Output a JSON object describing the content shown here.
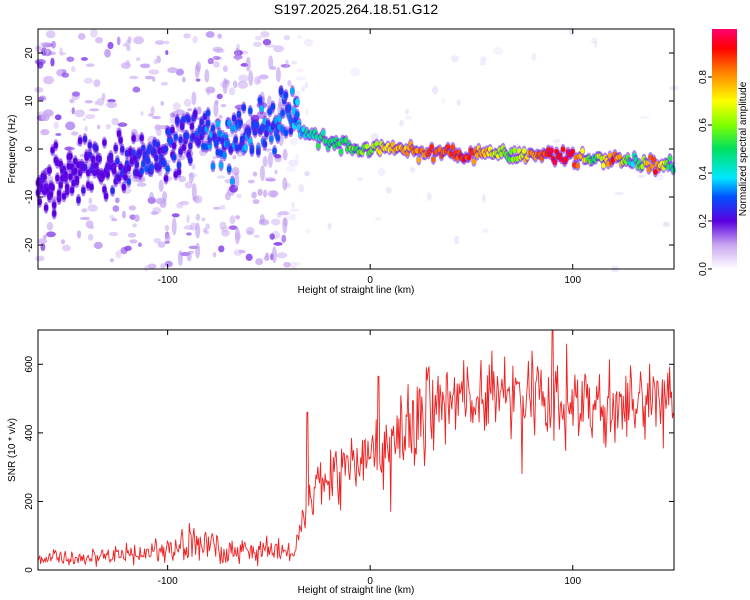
{
  "title": "S197.2025.264.18.51.G12",
  "chart_data": [
    {
      "type": "heatmap",
      "name": "spectrogram",
      "xlabel": "Height of straight line (km)",
      "ylabel": "Frequency (Hz)",
      "xlim": [
        -164,
        150
      ],
      "ylim": [
        -25,
        25
      ],
      "xticks": [
        -100,
        0,
        100
      ],
      "yticks": [
        -20,
        -10,
        0,
        10,
        20
      ],
      "colorbar": {
        "label": "Normalized spectral amplitude",
        "ticks": [
          0.0,
          0.2,
          0.4,
          0.6,
          0.8
        ],
        "range": [
          0,
          1
        ],
        "colormap": "rainbow"
      },
      "ridge": [
        {
          "x": -164,
          "y": -8,
          "a": 0.15
        },
        {
          "x": -150,
          "y": -6,
          "a": 0.15
        },
        {
          "x": -140,
          "y": -4,
          "a": 0.18
        },
        {
          "x": -125,
          "y": -3,
          "a": 0.2
        },
        {
          "x": -110,
          "y": -2,
          "a": 0.25
        },
        {
          "x": -100,
          "y": -1,
          "a": 0.25
        },
        {
          "x": -90,
          "y": 2,
          "a": 0.25
        },
        {
          "x": -80,
          "y": 3,
          "a": 0.3
        },
        {
          "x": -70,
          "y": 0,
          "a": 0.3
        },
        {
          "x": -60,
          "y": 3,
          "a": 0.3
        },
        {
          "x": -50,
          "y": 5,
          "a": 0.3
        },
        {
          "x": -40,
          "y": 7.5,
          "a": 0.3
        },
        {
          "x": -35,
          "y": 4,
          "a": 0.35
        },
        {
          "x": -30,
          "y": 3,
          "a": 0.45
        },
        {
          "x": -20,
          "y": 1.5,
          "a": 0.5
        },
        {
          "x": -10,
          "y": 0.5,
          "a": 0.55
        },
        {
          "x": 0,
          "y": 0,
          "a": 0.6
        },
        {
          "x": 10,
          "y": 0,
          "a": 0.75
        },
        {
          "x": 20,
          "y": -0.5,
          "a": 0.8
        },
        {
          "x": 30,
          "y": -0.8,
          "a": 0.85
        },
        {
          "x": 40,
          "y": -0.9,
          "a": 0.9
        },
        {
          "x": 50,
          "y": -1,
          "a": 0.85
        },
        {
          "x": 60,
          "y": -1,
          "a": 0.7
        },
        {
          "x": 70,
          "y": -1.3,
          "a": 0.55
        },
        {
          "x": 80,
          "y": -1.5,
          "a": 0.8
        },
        {
          "x": 90,
          "y": -1.5,
          "a": 0.95
        },
        {
          "x": 100,
          "y": -1.7,
          "a": 0.95
        },
        {
          "x": 110,
          "y": -2,
          "a": 0.5
        },
        {
          "x": 120,
          "y": -2.3,
          "a": 0.9
        },
        {
          "x": 130,
          "y": -2.7,
          "a": 0.4
        },
        {
          "x": 140,
          "y": -3.2,
          "a": 0.9
        },
        {
          "x": 150,
          "y": -3.5,
          "a": 0.4
        }
      ]
    },
    {
      "type": "line",
      "name": "snr",
      "xlabel": "Height of straight line (km)",
      "ylabel": "SNR (10 * v/v)",
      "xlim": [
        -164,
        150
      ],
      "ylim": [
        0,
        700
      ],
      "xticks": [
        -100,
        0,
        100
      ],
      "yticks": [
        0,
        200,
        400,
        600
      ],
      "color": "#ee2222",
      "envelope": [
        {
          "x": -164,
          "y": 35
        },
        {
          "x": -130,
          "y": 35
        },
        {
          "x": -110,
          "y": 50
        },
        {
          "x": -95,
          "y": 70
        },
        {
          "x": -85,
          "y": 85
        },
        {
          "x": -75,
          "y": 70
        },
        {
          "x": -60,
          "y": 55
        },
        {
          "x": -45,
          "y": 60
        },
        {
          "x": -38,
          "y": 40
        },
        {
          "x": -33,
          "y": 150
        },
        {
          "x": -28,
          "y": 240
        },
        {
          "x": -20,
          "y": 280
        },
        {
          "x": -10,
          "y": 300
        },
        {
          "x": 0,
          "y": 330
        },
        {
          "x": 10,
          "y": 380
        },
        {
          "x": 20,
          "y": 440
        },
        {
          "x": 30,
          "y": 480
        },
        {
          "x": 40,
          "y": 500
        },
        {
          "x": 60,
          "y": 510
        },
        {
          "x": 80,
          "y": 500
        },
        {
          "x": 100,
          "y": 490
        },
        {
          "x": 120,
          "y": 480
        },
        {
          "x": 150,
          "y": 480
        }
      ],
      "spikes": [
        {
          "x": -31,
          "y": 460
        },
        {
          "x": 4,
          "y": 565
        },
        {
          "x": 10,
          "y": 170
        },
        {
          "x": 60,
          "y": 640
        },
        {
          "x": 75,
          "y": 280
        },
        {
          "x": 80,
          "y": 640
        },
        {
          "x": 90,
          "y": 700
        },
        {
          "x": 97,
          "y": 660
        }
      ]
    }
  ]
}
